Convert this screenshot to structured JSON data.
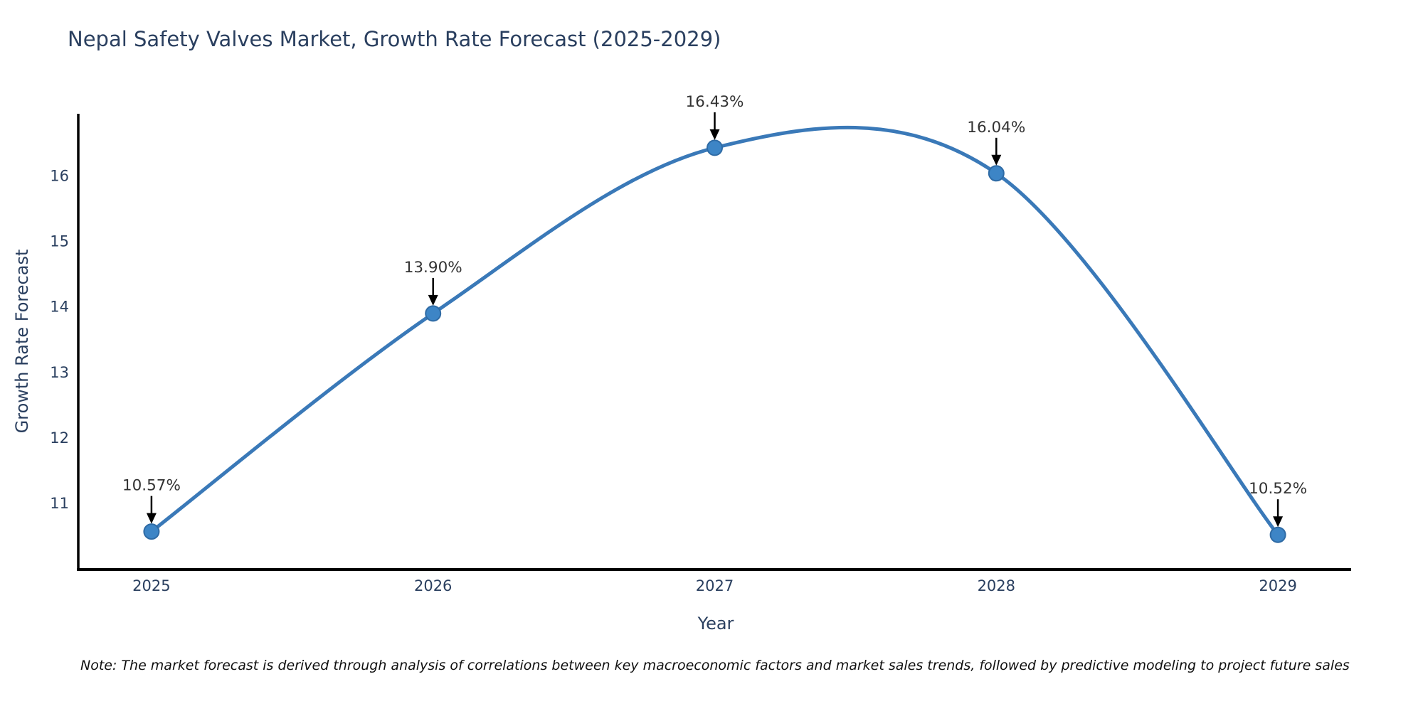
{
  "chart_data": {
    "type": "line",
    "title": "Nepal Safety Valves Market, Growth Rate Forecast (2025-2029)",
    "xlabel": "Year",
    "ylabel": "Growth Rate Forecast",
    "x": [
      2025,
      2026,
      2027,
      2028,
      2029
    ],
    "series": [
      {
        "name": "Growth Rate Forecast",
        "values": [
          10.57,
          13.9,
          16.43,
          16.04,
          10.52
        ]
      }
    ],
    "point_labels": [
      "10.57%",
      "13.90%",
      "16.43%",
      "16.04%",
      "10.52%"
    ],
    "xticks": [
      2025,
      2026,
      2027,
      2028,
      2029
    ],
    "yticks": [
      11,
      12,
      13,
      14,
      15,
      16
    ],
    "xlim": [
      2024.74,
      2029.26
    ],
    "ylim": [
      9.99,
      16.95
    ],
    "grid": false,
    "legend": "none",
    "line_shape": "spline",
    "annotations": "black down-arrows from each percentage label to its marker",
    "colors": {
      "line": "#3a79b8",
      "marker_fill": "#3d85c6",
      "marker_edge": "#2f6ba5",
      "axis": "#000000",
      "tick_text": "#2a3f5f",
      "title_text": "#2a3f5f",
      "annotation_text": "#333333",
      "arrow": "#000000",
      "background": "#ffffff"
    }
  },
  "footnote": "Note: The market forecast is derived through analysis of correlations between key macroeconomic factors and market sales trends, followed by predictive modeling to project future sales"
}
